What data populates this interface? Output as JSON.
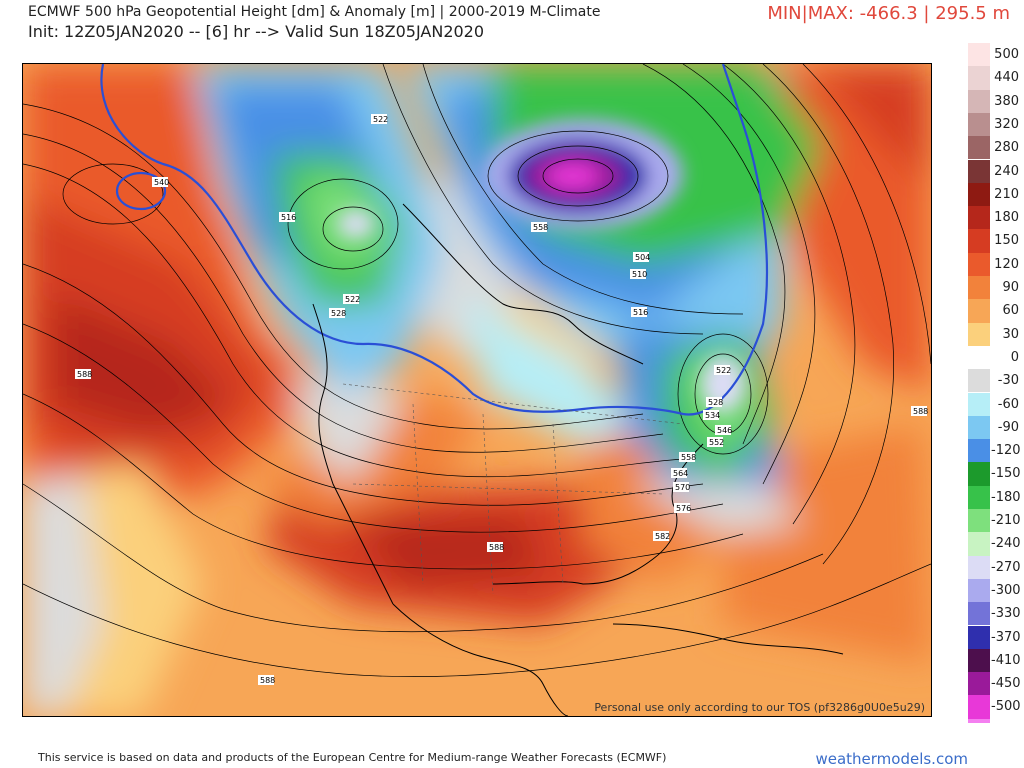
{
  "header": {
    "title_line1": "ECMWF 500 hPa Geopotential Height [dm] & Anomaly [m] | 2000-2019 M-Climate",
    "title_line2": "Init: 12Z05JAN2020 -- [6] hr --> Valid Sun 18Z05JAN2020",
    "minmax": "MIN|MAX: -466.3 | 295.5 m"
  },
  "map": {
    "tos_notice": "Personal use only according to our TOS (pf3286g0U0e5u29)",
    "contour_labels": [
      {
        "id": "c540-pac",
        "text": "540"
      },
      {
        "id": "c522-ak",
        "text": "522"
      },
      {
        "id": "c516-bc",
        "text": "516"
      },
      {
        "id": "c522-bc",
        "text": "522"
      },
      {
        "id": "c528-bc",
        "text": "528"
      },
      {
        "id": "c588-pac",
        "text": "588"
      },
      {
        "id": "c558-hud",
        "text": "558"
      },
      {
        "id": "c504-lab",
        "text": "504"
      },
      {
        "id": "c510-lab",
        "text": "510"
      },
      {
        "id": "c516-lab",
        "text": "516"
      },
      {
        "id": "c522-ne",
        "text": "522"
      },
      {
        "id": "c528-ne",
        "text": "528"
      },
      {
        "id": "c534-ne",
        "text": "534"
      },
      {
        "id": "c546-ne",
        "text": "546"
      },
      {
        "id": "c552-ne",
        "text": "552"
      },
      {
        "id": "c558-ne",
        "text": "558"
      },
      {
        "id": "c564-ne",
        "text": "564"
      },
      {
        "id": "c570-ne",
        "text": "570"
      },
      {
        "id": "c576-ne",
        "text": "576"
      },
      {
        "id": "c582-se",
        "text": "582"
      },
      {
        "id": "c588-us",
        "text": "588"
      },
      {
        "id": "c588-atl",
        "text": "588"
      },
      {
        "id": "c588-epac",
        "text": "588"
      }
    ]
  },
  "colorbar": {
    "stops": [
      {
        "label": "500",
        "color": "#fde4e4"
      },
      {
        "label": "440",
        "color": "#ebd3d3"
      },
      {
        "label": "380",
        "color": "#d5b6b6"
      },
      {
        "label": "320",
        "color": "#b98f8f"
      },
      {
        "label": "280",
        "color": "#9b6565"
      },
      {
        "label": "240",
        "color": "#7a3535"
      },
      {
        "label": "210",
        "color": "#8e1a12"
      },
      {
        "label": "180",
        "color": "#b5271b"
      },
      {
        "label": "150",
        "color": "#d63c22"
      },
      {
        "label": "120",
        "color": "#ea5a2c"
      },
      {
        "label": "90",
        "color": "#f2823b"
      },
      {
        "label": "60",
        "color": "#f7a656"
      },
      {
        "label": "30",
        "color": "#fbd07c"
      },
      {
        "label": "0",
        "color": "#ffffff"
      },
      {
        "label": "-30",
        "color": "#dcdcdc"
      },
      {
        "label": "-60",
        "color": "#b6eef7"
      },
      {
        "label": "-90",
        "color": "#7cc8f2"
      },
      {
        "label": "-120",
        "color": "#4a8fe6"
      },
      {
        "label": "-150",
        "color": "#1c9a2c"
      },
      {
        "label": "-180",
        "color": "#37c24a"
      },
      {
        "label": "-210",
        "color": "#7ee07d"
      },
      {
        "label": "-240",
        "color": "#c8f3c2"
      },
      {
        "label": "-270",
        "color": "#dcdcf5"
      },
      {
        "label": "-300",
        "color": "#aaaaee"
      },
      {
        "label": "-330",
        "color": "#7373d8"
      },
      {
        "label": "-370",
        "color": "#2f2fae"
      },
      {
        "label": "-410",
        "color": "#4d0f4d"
      },
      {
        "label": "-450",
        "color": "#9a1a9a"
      },
      {
        "label": "-500",
        "color": "#e838d8"
      }
    ],
    "bottom_color": "#f47ff0"
  },
  "footer": {
    "attribution": "This service is based on data and products of the European Centre for Medium-range Weather Forecasts (ECMWF)",
    "brand": "weathermodels.com"
  }
}
